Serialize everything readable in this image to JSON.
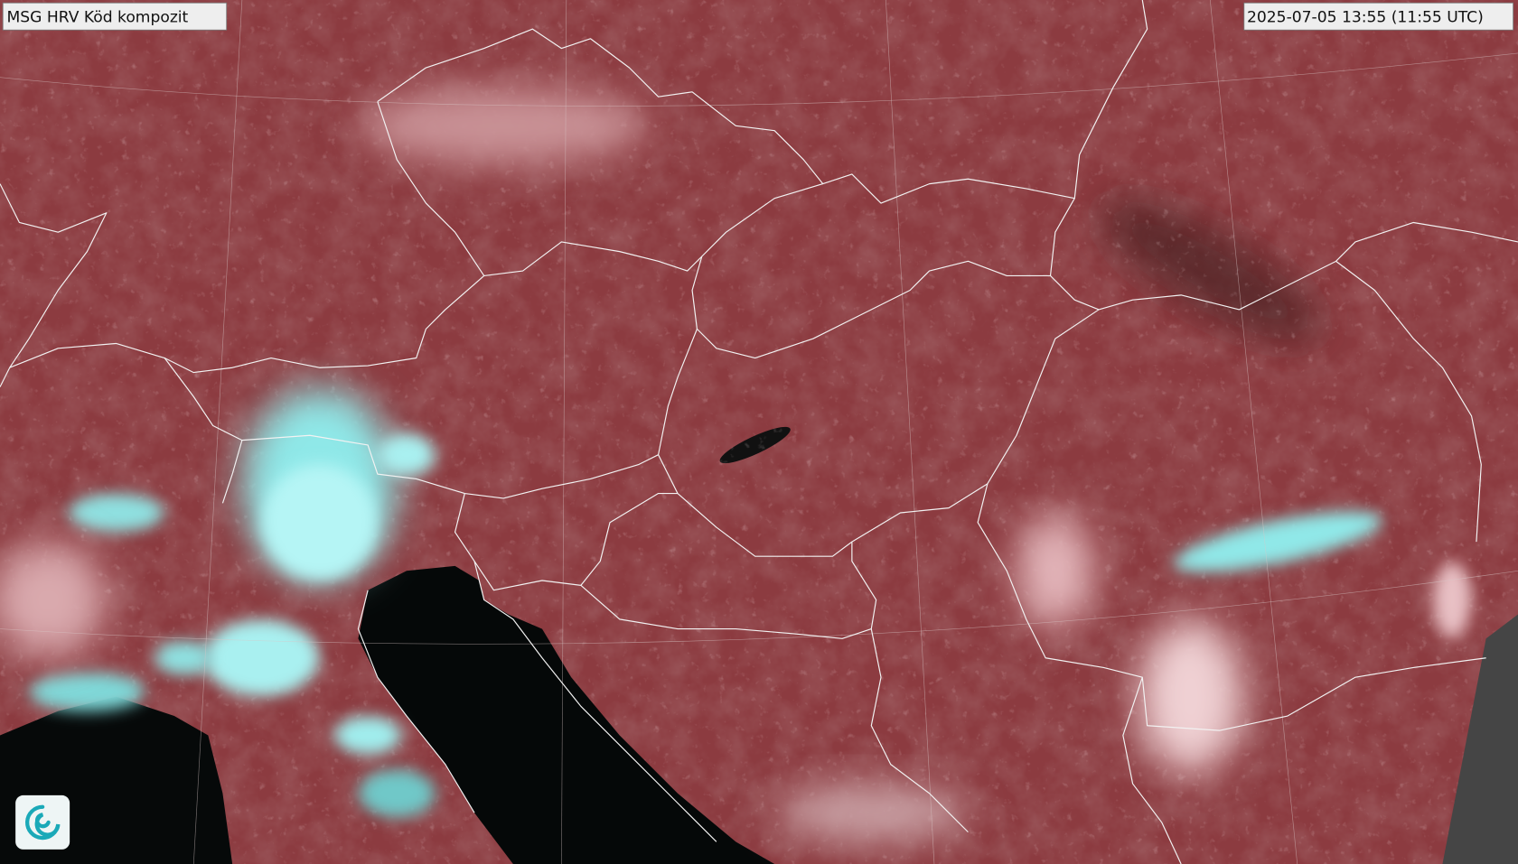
{
  "header": {
    "title": "MSG HRV Köd kompozit",
    "timestamp": "2025-07-05 13:55 (11:55 UTC)"
  }
}
